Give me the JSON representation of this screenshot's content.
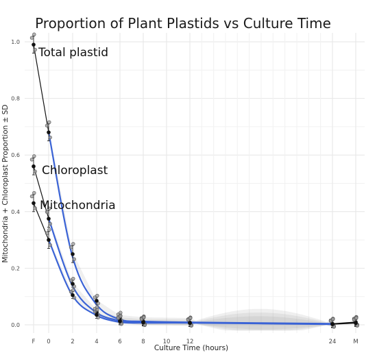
{
  "chart_data": {
    "type": "scatter",
    "title": "Proportion of Plant Plastids vs Culture Time",
    "xlabel": "Culture Time (hours)",
    "ylabel": "Mitochondria + Chloroplast Proportion ± SD",
    "x_ticks": [
      "F",
      "0",
      "2",
      "4",
      "6",
      "8",
      "10",
      "12",
      "24",
      "M"
    ],
    "y_ticks": [
      "0.0",
      "0.2",
      "0.4",
      "0.6",
      "0.8",
      "1.0"
    ],
    "ylim": [
      0,
      1
    ],
    "grid": true,
    "smooth_color": "#3a63d6",
    "series": [
      {
        "name": "Total plastid",
        "points": [
          [
            "F",
            0.99
          ],
          [
            "0",
            0.68
          ],
          [
            "2",
            0.25
          ],
          [
            "4",
            0.085
          ],
          [
            "6",
            0.025
          ],
          [
            "8",
            0.012
          ],
          [
            "12",
            0.008
          ],
          [
            "24",
            0.004
          ],
          [
            "M",
            0.01
          ]
        ],
        "smooth": [
          [
            "0",
            0.68
          ],
          [
            "2",
            0.245
          ],
          [
            "4",
            0.075
          ],
          [
            "6",
            0.02
          ],
          [
            "8",
            0.012
          ],
          [
            "12",
            0.009
          ],
          [
            "24",
            0.004
          ]
        ]
      },
      {
        "name": "Chloroplast",
        "points": [
          [
            "F",
            0.56
          ],
          [
            "0",
            0.375
          ],
          [
            "2",
            0.145
          ],
          [
            "4",
            0.045
          ],
          [
            "6",
            0.015
          ],
          [
            "8",
            0.01
          ],
          [
            "12",
            0.007
          ],
          [
            "24",
            0.003
          ],
          [
            "M",
            0.008
          ]
        ],
        "smooth": [
          [
            "0",
            0.375
          ],
          [
            "2",
            0.14
          ],
          [
            "4",
            0.045
          ],
          [
            "6",
            0.015
          ],
          [
            "8",
            0.009
          ],
          [
            "12",
            0.008
          ],
          [
            "24",
            0.003
          ]
        ]
      },
      {
        "name": "Mitochondria",
        "points": [
          [
            "F",
            0.43
          ],
          [
            "0",
            0.3
          ],
          [
            "2",
            0.105
          ],
          [
            "4",
            0.035
          ],
          [
            "6",
            0.012
          ],
          [
            "8",
            0.008
          ],
          [
            "12",
            0.006
          ],
          [
            "24",
            0.002
          ],
          [
            "M",
            0.006
          ]
        ],
        "smooth": [
          [
            "0",
            0.3
          ],
          [
            "2",
            0.105
          ],
          [
            "4",
            0.035
          ],
          [
            "6",
            0.01
          ],
          [
            "8",
            0.007
          ],
          [
            "12",
            0.007
          ],
          [
            "24",
            0.002
          ]
        ]
      }
    ]
  }
}
